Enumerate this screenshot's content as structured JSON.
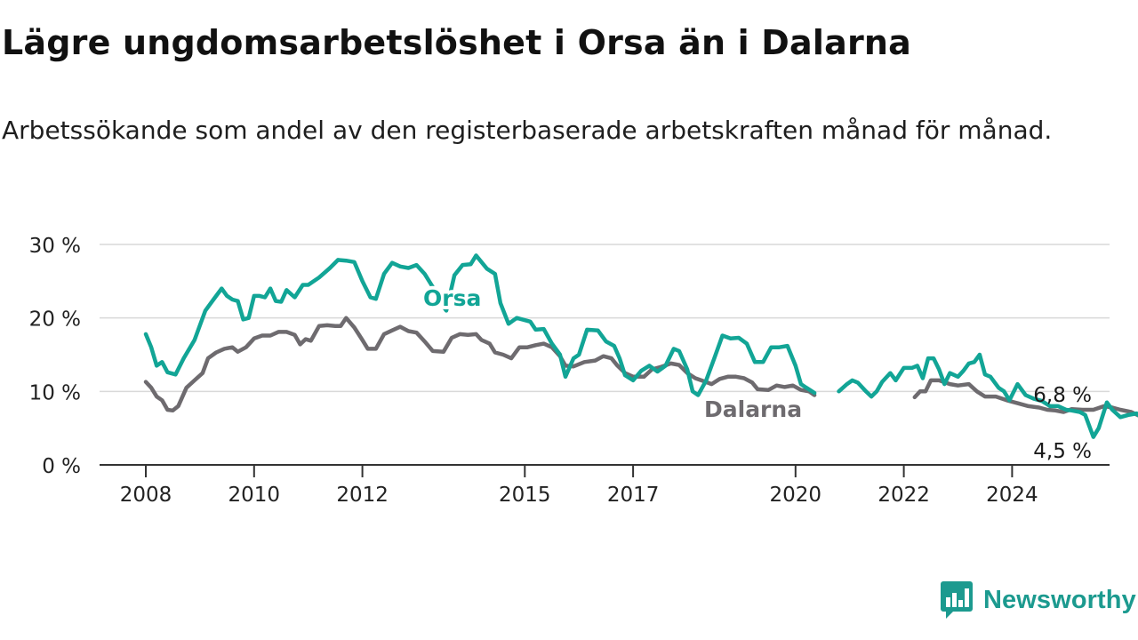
{
  "title": "Lägre ungdomsarbetslöshet i Orsa än i Dalarna",
  "subtitle": "Arbetssökande som andel av den registerbaserade arbetskraften månad för månad.",
  "brand": "Newsworthy",
  "colors": {
    "orsa": "#12a596",
    "dalarna": "#6e6b6f",
    "grid": "#d9d9d9",
    "axis": "#333333",
    "brand": "#1c9a8f"
  },
  "chart_data": {
    "type": "line",
    "ylim": [
      0,
      30
    ],
    "y_ticks": [
      0,
      10,
      20,
      30
    ],
    "y_tick_labels": [
      "0 %",
      "10 %",
      "20 %",
      "30 %"
    ],
    "x_ticks": [
      2008,
      2010,
      2012,
      2015,
      2017,
      2020,
      2022,
      2024
    ],
    "x_tick_labels": [
      "2008",
      "2010",
      "2012",
      "2015",
      "2017",
      "2020",
      "2022",
      "2024"
    ],
    "grid": "horizontal",
    "series": [
      {
        "name": "Orsa",
        "color": "#12a596",
        "end_label": "4,5 %",
        "points": [
          [
            2008.0,
            17.8
          ],
          [
            2008.1,
            16.0
          ],
          [
            2008.2,
            13.5
          ],
          [
            2008.3,
            14.0
          ],
          [
            2008.4,
            12.6
          ],
          [
            2008.55,
            12.3
          ],
          [
            2008.7,
            14.5
          ],
          [
            2008.9,
            17.0
          ],
          [
            2009.0,
            19.0
          ],
          [
            2009.1,
            21.0
          ],
          [
            2009.25,
            22.5
          ],
          [
            2009.4,
            24.0
          ],
          [
            2009.5,
            23.0
          ],
          [
            2009.6,
            22.5
          ],
          [
            2009.7,
            22.3
          ],
          [
            2009.8,
            19.8
          ],
          [
            2009.9,
            20.0
          ],
          [
            2010.0,
            23.0
          ],
          [
            2010.1,
            23.0
          ],
          [
            2010.2,
            22.8
          ],
          [
            2010.3,
            24.0
          ],
          [
            2010.4,
            22.3
          ],
          [
            2010.5,
            22.2
          ],
          [
            2010.6,
            23.8
          ],
          [
            2010.75,
            22.8
          ],
          [
            2010.9,
            24.5
          ],
          [
            2011.0,
            24.5
          ],
          [
            2011.2,
            25.5
          ],
          [
            2011.4,
            26.8
          ],
          [
            2011.55,
            27.9
          ],
          [
            2011.7,
            27.8
          ],
          [
            2011.85,
            27.6
          ],
          [
            2012.0,
            25.0
          ],
          [
            2012.15,
            22.8
          ],
          [
            2012.25,
            22.6
          ],
          [
            2012.4,
            26.0
          ],
          [
            2012.55,
            27.5
          ],
          [
            2012.7,
            27.0
          ],
          [
            2012.85,
            26.8
          ],
          [
            2013.0,
            27.2
          ],
          [
            2013.15,
            26.0
          ],
          [
            2013.3,
            24.2
          ],
          [
            2013.45,
            22.0
          ],
          [
            2013.55,
            21.0
          ],
          [
            2013.7,
            25.8
          ],
          [
            2013.85,
            27.2
          ],
          [
            2014.0,
            27.3
          ],
          [
            2014.1,
            28.5
          ],
          [
            2014.3,
            26.7
          ],
          [
            2014.45,
            26.0
          ],
          [
            2014.55,
            22.0
          ],
          [
            2014.7,
            19.2
          ],
          [
            2014.85,
            20.0
          ],
          [
            2015.1,
            19.5
          ],
          [
            2015.2,
            18.4
          ],
          [
            2015.35,
            18.5
          ],
          [
            2015.5,
            16.5
          ],
          [
            2015.65,
            15.0
          ],
          [
            2015.75,
            12.0
          ],
          [
            2015.9,
            14.5
          ],
          [
            2016.0,
            15.0
          ],
          [
            2016.15,
            18.4
          ],
          [
            2016.35,
            18.3
          ],
          [
            2016.5,
            16.8
          ],
          [
            2016.65,
            16.2
          ],
          [
            2016.75,
            14.5
          ],
          [
            2016.85,
            12.2
          ],
          [
            2017.0,
            11.5
          ],
          [
            2017.15,
            12.8
          ],
          [
            2017.3,
            13.5
          ],
          [
            2017.45,
            12.7
          ],
          [
            2017.6,
            13.5
          ],
          [
            2017.75,
            15.8
          ],
          [
            2017.85,
            15.5
          ],
          [
            2018.0,
            13.0
          ],
          [
            2018.1,
            10.0
          ],
          [
            2018.2,
            9.5
          ],
          [
            2018.35,
            11.5
          ],
          [
            2018.5,
            14.5
          ],
          [
            2018.65,
            17.6
          ],
          [
            2018.8,
            17.2
          ],
          [
            2018.95,
            17.3
          ],
          [
            2019.1,
            16.5
          ],
          [
            2019.25,
            14.0
          ],
          [
            2019.4,
            14.0
          ],
          [
            2019.55,
            16.0
          ],
          [
            2019.7,
            16.0
          ],
          [
            2019.85,
            16.2
          ],
          [
            2020.0,
            13.5
          ],
          [
            2020.1,
            11.0
          ],
          [
            2020.2,
            10.5
          ],
          [
            2020.35,
            9.8
          ]
        ],
        "points_b": [
          [
            2020.8,
            10.0
          ],
          [
            2020.95,
            11.0
          ],
          [
            2021.05,
            11.5
          ],
          [
            2021.15,
            11.2
          ],
          [
            2021.3,
            10.0
          ],
          [
            2021.4,
            9.3
          ],
          [
            2021.5,
            10.0
          ],
          [
            2021.6,
            11.3
          ],
          [
            2021.75,
            12.5
          ],
          [
            2021.85,
            11.5
          ],
          [
            2022.0,
            13.2
          ],
          [
            2022.15,
            13.2
          ],
          [
            2022.25,
            13.5
          ],
          [
            2022.35,
            11.8
          ],
          [
            2022.45,
            14.5
          ],
          [
            2022.55,
            14.5
          ],
          [
            2022.65,
            13.0
          ],
          [
            2022.75,
            11.0
          ],
          [
            2022.85,
            12.5
          ],
          [
            2023.0,
            12.0
          ],
          [
            2023.1,
            12.8
          ],
          [
            2023.2,
            13.8
          ],
          [
            2023.3,
            14.0
          ],
          [
            2023.4,
            15.0
          ],
          [
            2023.5,
            12.3
          ],
          [
            2023.6,
            12.0
          ],
          [
            2023.75,
            10.5
          ],
          [
            2023.85,
            10.0
          ],
          [
            2023.95,
            8.8
          ],
          [
            2024.1,
            11.0
          ],
          [
            2024.25,
            9.5
          ],
          [
            2024.4,
            9.0
          ],
          [
            2024.55,
            8.7
          ],
          [
            2024.7,
            8.0
          ],
          [
            2024.85,
            8.0
          ],
          [
            2025.0,
            7.5
          ],
          [
            2025.1,
            7.4
          ],
          [
            2025.25,
            7.2
          ],
          [
            2025.35,
            6.8
          ],
          [
            2025.5,
            3.8
          ],
          [
            2025.6,
            5.0
          ],
          [
            2025.75,
            8.5
          ],
          [
            2025.85,
            7.5
          ],
          [
            2026.0,
            6.5
          ],
          [
            2026.15,
            6.8
          ],
          [
            2026.3,
            7.0
          ],
          [
            2026.45,
            6.0
          ],
          [
            2026.55,
            4.8
          ],
          [
            2026.7,
            5.2
          ],
          [
            2026.85,
            5.0
          ],
          [
            2027.0,
            6.5
          ],
          [
            2027.1,
            6.2
          ],
          [
            2027.25,
            6.5
          ],
          [
            2027.35,
            6.0
          ],
          [
            2027.45,
            6.3
          ],
          [
            2027.6,
            5.0
          ],
          [
            2027.75,
            5.5
          ],
          [
            2027.95,
            5.2
          ],
          [
            2028.05,
            5.0
          ],
          [
            2028.15,
            6.0
          ],
          [
            2028.25,
            4.5
          ]
        ]
      },
      {
        "name": "Dalarna",
        "color": "#6e6b6f",
        "end_label": "6,8 %",
        "points": [
          [
            2008.0,
            11.3
          ],
          [
            2008.1,
            10.5
          ],
          [
            2008.2,
            9.3
          ],
          [
            2008.3,
            8.8
          ],
          [
            2008.4,
            7.5
          ],
          [
            2008.5,
            7.4
          ],
          [
            2008.6,
            8.0
          ],
          [
            2008.75,
            10.5
          ],
          [
            2008.9,
            11.5
          ],
          [
            2009.05,
            12.5
          ],
          [
            2009.15,
            14.5
          ],
          [
            2009.3,
            15.3
          ],
          [
            2009.45,
            15.8
          ],
          [
            2009.6,
            16.0
          ],
          [
            2009.7,
            15.4
          ],
          [
            2009.85,
            16.0
          ],
          [
            2010.0,
            17.2
          ],
          [
            2010.15,
            17.6
          ],
          [
            2010.3,
            17.6
          ],
          [
            2010.45,
            18.1
          ],
          [
            2010.6,
            18.1
          ],
          [
            2010.75,
            17.7
          ],
          [
            2010.85,
            16.4
          ],
          [
            2010.95,
            17.1
          ],
          [
            2011.05,
            16.9
          ],
          [
            2011.2,
            18.9
          ],
          [
            2011.35,
            19.0
          ],
          [
            2011.5,
            18.9
          ],
          [
            2011.6,
            18.9
          ],
          [
            2011.7,
            20.0
          ],
          [
            2011.85,
            18.7
          ],
          [
            2012.0,
            17.0
          ],
          [
            2012.1,
            15.8
          ],
          [
            2012.25,
            15.8
          ],
          [
            2012.4,
            17.8
          ],
          [
            2012.55,
            18.3
          ],
          [
            2012.7,
            18.8
          ],
          [
            2012.85,
            18.2
          ],
          [
            2013.0,
            18.0
          ],
          [
            2013.15,
            16.8
          ],
          [
            2013.3,
            15.5
          ],
          [
            2013.5,
            15.4
          ],
          [
            2013.65,
            17.3
          ],
          [
            2013.8,
            17.8
          ],
          [
            2013.95,
            17.7
          ],
          [
            2014.1,
            17.8
          ],
          [
            2014.2,
            17.0
          ],
          [
            2014.35,
            16.5
          ],
          [
            2014.45,
            15.3
          ],
          [
            2014.6,
            15.0
          ],
          [
            2014.75,
            14.5
          ],
          [
            2014.9,
            16.0
          ],
          [
            2015.05,
            16.0
          ],
          [
            2015.2,
            16.3
          ],
          [
            2015.35,
            16.5
          ],
          [
            2015.5,
            16.0
          ],
          [
            2015.65,
            14.8
          ],
          [
            2015.75,
            13.5
          ],
          [
            2015.9,
            13.4
          ],
          [
            2016.1,
            14.0
          ],
          [
            2016.3,
            14.2
          ],
          [
            2016.45,
            14.8
          ],
          [
            2016.6,
            14.5
          ],
          [
            2016.7,
            13.6
          ],
          [
            2016.85,
            12.5
          ],
          [
            2017.0,
            12.0
          ],
          [
            2017.2,
            12.0
          ],
          [
            2017.35,
            13.0
          ],
          [
            2017.5,
            13.3
          ],
          [
            2017.7,
            13.8
          ],
          [
            2017.85,
            13.6
          ],
          [
            2018.0,
            12.5
          ],
          [
            2018.15,
            11.8
          ],
          [
            2018.3,
            11.4
          ],
          [
            2018.45,
            11.0
          ],
          [
            2018.6,
            11.7
          ],
          [
            2018.75,
            12.0
          ],
          [
            2018.9,
            12.0
          ],
          [
            2019.05,
            11.8
          ],
          [
            2019.2,
            11.2
          ],
          [
            2019.3,
            10.3
          ],
          [
            2019.5,
            10.2
          ],
          [
            2019.65,
            10.8
          ],
          [
            2019.8,
            10.6
          ],
          [
            2019.95,
            10.8
          ],
          [
            2020.1,
            10.2
          ],
          [
            2020.25,
            10.0
          ],
          [
            2020.35,
            9.5
          ]
        ],
        "points_b": [
          [
            2022.2,
            9.2
          ],
          [
            2022.3,
            10.0
          ],
          [
            2022.4,
            10.0
          ],
          [
            2022.5,
            11.5
          ],
          [
            2022.65,
            11.5
          ],
          [
            2022.85,
            11.0
          ],
          [
            2023.0,
            10.8
          ],
          [
            2023.2,
            11.0
          ],
          [
            2023.35,
            10.0
          ],
          [
            2023.5,
            9.3
          ],
          [
            2023.7,
            9.3
          ],
          [
            2023.9,
            8.8
          ],
          [
            2024.1,
            8.4
          ],
          [
            2024.3,
            8.0
          ],
          [
            2024.5,
            7.8
          ],
          [
            2024.65,
            7.5
          ],
          [
            2024.8,
            7.4
          ],
          [
            2024.95,
            7.2
          ],
          [
            2025.1,
            7.6
          ],
          [
            2025.3,
            7.5
          ],
          [
            2025.5,
            7.5
          ],
          [
            2025.7,
            8.0
          ],
          [
            2025.85,
            7.8
          ],
          [
            2026.0,
            7.5
          ],
          [
            2026.2,
            7.2
          ],
          [
            2026.4,
            6.5
          ],
          [
            2026.55,
            6.9
          ],
          [
            2026.7,
            7.0
          ],
          [
            2026.85,
            7.2
          ],
          [
            2027.0,
            7.3
          ],
          [
            2027.15,
            6.8
          ],
          [
            2027.3,
            6.2
          ],
          [
            2027.45,
            6.5
          ],
          [
            2027.6,
            6.0
          ],
          [
            2027.75,
            6.2
          ],
          [
            2027.9,
            6.8
          ],
          [
            2028.05,
            6.6
          ],
          [
            2028.25,
            6.8
          ]
        ]
      }
    ]
  }
}
